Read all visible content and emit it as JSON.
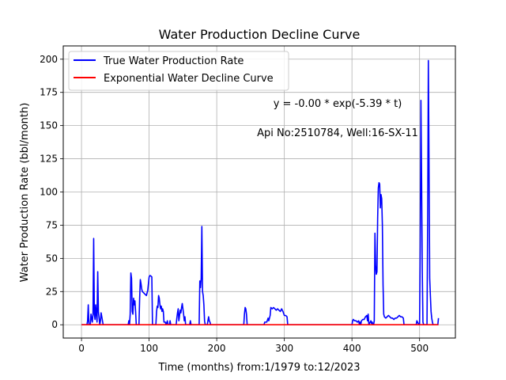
{
  "chart_data": {
    "type": "line",
    "title": "Water Production Decline Curve",
    "xlabel": "Time (months) from:1/1979 to:12/2023",
    "ylabel": "Water Production Rate (bbl/month)",
    "xlim": [
      -27,
      553
    ],
    "ylim": [
      -10,
      210
    ],
    "xticks": [
      0,
      100,
      200,
      300,
      400,
      500
    ],
    "yticks": [
      0,
      25,
      50,
      75,
      100,
      125,
      150,
      175,
      200
    ],
    "grid": true,
    "legend_position": "top-left",
    "annotations": [
      "y = -0.00 * exp(-5.39 * t)",
      "Api No:2510784, Well:16-SX-11"
    ],
    "series": [
      {
        "name": "True Water Production Rate",
        "color": "#0000ff",
        "points": [
          [
            0,
            0
          ],
          [
            8,
            0
          ],
          [
            9,
            3
          ],
          [
            10,
            15
          ],
          [
            11,
            0
          ],
          [
            13,
            0
          ],
          [
            14,
            8
          ],
          [
            15,
            5
          ],
          [
            16,
            2
          ],
          [
            17,
            8
          ],
          [
            18,
            65
          ],
          [
            19,
            8
          ],
          [
            20,
            4
          ],
          [
            21,
            15
          ],
          [
            22,
            8
          ],
          [
            23,
            2
          ],
          [
            24,
            40
          ],
          [
            25,
            10
          ],
          [
            26,
            5
          ],
          [
            27,
            0
          ],
          [
            28,
            3
          ],
          [
            29,
            9
          ],
          [
            30,
            6
          ],
          [
            31,
            3
          ],
          [
            32,
            0
          ],
          [
            69,
            0
          ],
          [
            70,
            3
          ],
          [
            71,
            0
          ],
          [
            72,
            8
          ],
          [
            73,
            39
          ],
          [
            74,
            35
          ],
          [
            75,
            10
          ],
          [
            76,
            8
          ],
          [
            77,
            20
          ],
          [
            78,
            15
          ],
          [
            79,
            18
          ],
          [
            80,
            10
          ],
          [
            81,
            0
          ],
          [
            85,
            0
          ],
          [
            86,
            20
          ],
          [
            87,
            34
          ],
          [
            88,
            31
          ],
          [
            89,
            27
          ],
          [
            90,
            25
          ],
          [
            92,
            24
          ],
          [
            94,
            23
          ],
          [
            96,
            22
          ],
          [
            98,
            26
          ],
          [
            100,
            36
          ],
          [
            101,
            37
          ],
          [
            102,
            37
          ],
          [
            104,
            36
          ],
          [
            105,
            0
          ],
          [
            110,
            0
          ],
          [
            111,
            10
          ],
          [
            112,
            14
          ],
          [
            113,
            13
          ],
          [
            114,
            22
          ],
          [
            115,
            20
          ],
          [
            116,
            15
          ],
          [
            117,
            12
          ],
          [
            118,
            14
          ],
          [
            119,
            10
          ],
          [
            120,
            12
          ],
          [
            121,
            10
          ],
          [
            122,
            2
          ],
          [
            124,
            2
          ],
          [
            125,
            0
          ],
          [
            127,
            3
          ],
          [
            128,
            0
          ],
          [
            130,
            0
          ],
          [
            131,
            3
          ],
          [
            132,
            0
          ],
          [
            140,
            0
          ],
          [
            141,
            5
          ],
          [
            142,
            9
          ],
          [
            143,
            12
          ],
          [
            144,
            3
          ],
          [
            145,
            7
          ],
          [
            146,
            11
          ],
          [
            147,
            9
          ],
          [
            148,
            13
          ],
          [
            149,
            16
          ],
          [
            150,
            12
          ],
          [
            151,
            8
          ],
          [
            152,
            3
          ],
          [
            153,
            6
          ],
          [
            154,
            0
          ],
          [
            160,
            0
          ],
          [
            161,
            3
          ],
          [
            162,
            0
          ],
          [
            174,
            0
          ],
          [
            175,
            33
          ],
          [
            176,
            28
          ],
          [
            177,
            35
          ],
          [
            178,
            74
          ],
          [
            179,
            25
          ],
          [
            180,
            22
          ],
          [
            181,
            15
          ],
          [
            182,
            3
          ],
          [
            183,
            0
          ],
          [
            186,
            0
          ],
          [
            187,
            3
          ],
          [
            188,
            6
          ],
          [
            189,
            3
          ],
          [
            190,
            2
          ],
          [
            191,
            0
          ],
          [
            240,
            0
          ],
          [
            241,
            8
          ],
          [
            242,
            13
          ],
          [
            243,
            12
          ],
          [
            244,
            8
          ],
          [
            245,
            0
          ],
          [
            270,
            0
          ],
          [
            271,
            2
          ],
          [
            272,
            2
          ],
          [
            274,
            2
          ],
          [
            276,
            5
          ],
          [
            277,
            3
          ],
          [
            278,
            5
          ],
          [
            279,
            7
          ],
          [
            280,
            13
          ],
          [
            282,
            12
          ],
          [
            284,
            13
          ],
          [
            286,
            12
          ],
          [
            288,
            11
          ],
          [
            290,
            12
          ],
          [
            292,
            11
          ],
          [
            294,
            10
          ],
          [
            296,
            12
          ],
          [
            298,
            10
          ],
          [
            300,
            7
          ],
          [
            302,
            7
          ],
          [
            304,
            6
          ],
          [
            305,
            0
          ],
          [
            400,
            0
          ],
          [
            401,
            3
          ],
          [
            402,
            4
          ],
          [
            404,
            3
          ],
          [
            406,
            3
          ],
          [
            408,
            2
          ],
          [
            410,
            3
          ],
          [
            411,
            0
          ],
          [
            412,
            2
          ],
          [
            413,
            0
          ],
          [
            414,
            3
          ],
          [
            416,
            4
          ],
          [
            418,
            4
          ],
          [
            420,
            6
          ],
          [
            422,
            7
          ],
          [
            423,
            3
          ],
          [
            424,
            8
          ],
          [
            425,
            0
          ],
          [
            427,
            2
          ],
          [
            428,
            3
          ],
          [
            429,
            1
          ],
          [
            430,
            2
          ],
          [
            431,
            0
          ],
          [
            432,
            0
          ],
          [
            433,
            3
          ],
          [
            434,
            69
          ],
          [
            435,
            45
          ],
          [
            436,
            38
          ],
          [
            437,
            40
          ],
          [
            438,
            80
          ],
          [
            439,
            103
          ],
          [
            440,
            107
          ],
          [
            441,
            106
          ],
          [
            442,
            88
          ],
          [
            443,
            98
          ],
          [
            444,
            95
          ],
          [
            445,
            75
          ],
          [
            446,
            30
          ],
          [
            447,
            8
          ],
          [
            448,
            6
          ],
          [
            450,
            5
          ],
          [
            452,
            6
          ],
          [
            454,
            7
          ],
          [
            456,
            6
          ],
          [
            458,
            5
          ],
          [
            460,
            5
          ],
          [
            462,
            4
          ],
          [
            464,
            5
          ],
          [
            466,
            5
          ],
          [
            468,
            6
          ],
          [
            470,
            7
          ],
          [
            472,
            6
          ],
          [
            474,
            6
          ],
          [
            476,
            5
          ],
          [
            477,
            0
          ],
          [
            495,
            0
          ],
          [
            496,
            3
          ],
          [
            497,
            2
          ],
          [
            498,
            1
          ],
          [
            499,
            0
          ],
          [
            500,
            0
          ],
          [
            501,
            60
          ],
          [
            502,
            169
          ],
          [
            503,
            110
          ],
          [
            504,
            40
          ],
          [
            505,
            2
          ],
          [
            506,
            0
          ],
          [
            511,
            0
          ],
          [
            512,
            80
          ],
          [
            513,
            199
          ],
          [
            514,
            120
          ],
          [
            515,
            35
          ],
          [
            516,
            22
          ],
          [
            517,
            10
          ],
          [
            518,
            5
          ],
          [
            519,
            2
          ],
          [
            520,
            0
          ],
          [
            527,
            0
          ],
          [
            528,
            5
          ]
        ]
      },
      {
        "name": "Exponential Water Decline Curve",
        "color": "#ff0000",
        "points": [
          [
            0,
            0
          ],
          [
            528,
            0
          ]
        ]
      }
    ]
  }
}
